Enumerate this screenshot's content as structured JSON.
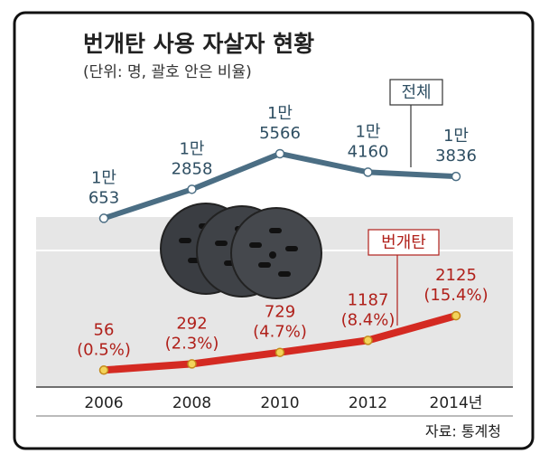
{
  "chart_data": {
    "type": "line",
    "title": "번개탄 사용 자살자 현황",
    "subtitle": "(단위: 명, 괄호 안은 비율)",
    "source": "자료: 통계청",
    "categories": [
      "2006",
      "2008",
      "2010",
      "2012",
      "2014년"
    ],
    "series": [
      {
        "name": "전체",
        "color": "#4b6e84",
        "values": [
          10653,
          12858,
          15566,
          14160,
          13836
        ],
        "value_labels": [
          [
            "1만",
            "653"
          ],
          [
            "1만",
            "2858"
          ],
          [
            "1만",
            "5566"
          ],
          [
            "1만",
            "4160"
          ],
          [
            "1만",
            "3836"
          ]
        ]
      },
      {
        "name": "번개탄",
        "color": "#d42a22",
        "axis": "y2",
        "values": [
          56,
          292,
          729,
          1187,
          2125
        ],
        "value_labels": [
          [
            "56",
            "(0.5%)"
          ],
          [
            "292",
            "(2.3%)"
          ],
          [
            "729",
            "(4.7%)"
          ],
          [
            "1187",
            "(8.4%)"
          ],
          [
            "2125",
            "(15.4%)"
          ]
        ]
      }
    ],
    "ylim": [
      -3000,
      19000
    ],
    "y2lim": [
      -1000,
      10000
    ]
  }
}
